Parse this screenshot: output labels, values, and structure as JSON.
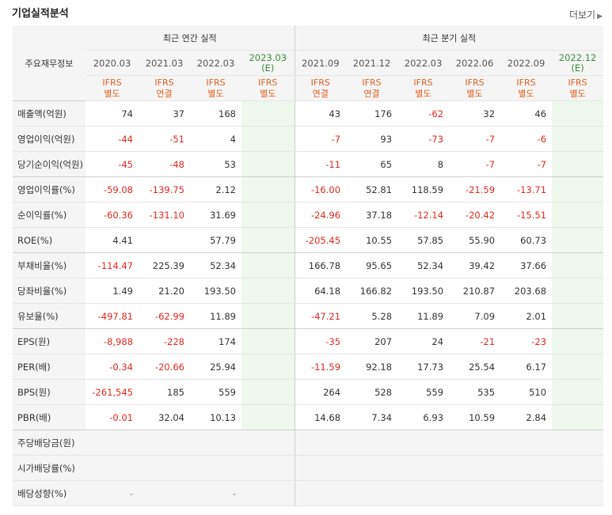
{
  "header": {
    "title": "기업실적분석",
    "more_label": "더보기"
  },
  "table": {
    "label_header": "주요재무정보",
    "groups": {
      "annual": "최근 연간 실적",
      "quarterly": "최근 분기 실적"
    },
    "annual_periods": [
      {
        "period": "2020.03",
        "ifrs": "IFRS",
        "basis": "별도"
      },
      {
        "period": "2021.03",
        "ifrs": "IFRS",
        "basis": "연결"
      },
      {
        "period": "2022.03",
        "ifrs": "IFRS",
        "basis": "별도"
      },
      {
        "period": "2023.03",
        "est": "(E)",
        "ifrs": "IFRS",
        "basis": "별도"
      }
    ],
    "quarterly_periods": [
      {
        "period": "2021.09",
        "ifrs": "IFRS",
        "basis": "연결"
      },
      {
        "period": "2021.12",
        "ifrs": "IFRS",
        "basis": "연결"
      },
      {
        "period": "2022.03",
        "ifrs": "IFRS",
        "basis": "별도"
      },
      {
        "period": "2022.06",
        "ifrs": "IFRS",
        "basis": "별도"
      },
      {
        "period": "2022.09",
        "ifrs": "IFRS",
        "basis": "별도"
      },
      {
        "period": "2022.12",
        "est": "(E)",
        "ifrs": "IFRS",
        "basis": "별도"
      }
    ],
    "rows": [
      {
        "label": "매출액(억원)",
        "annual": [
          "74",
          "37",
          "168",
          ""
        ],
        "quarterly": [
          "43",
          "176",
          "-62",
          "32",
          "46",
          ""
        ]
      },
      {
        "label": "영업이익(억원)",
        "annual": [
          "-44",
          "-51",
          "4",
          ""
        ],
        "quarterly": [
          "-7",
          "93",
          "-73",
          "-7",
          "-6",
          ""
        ]
      },
      {
        "label": "당기순이익(억원)",
        "annual": [
          "-45",
          "-48",
          "53",
          ""
        ],
        "quarterly": [
          "-11",
          "65",
          "8",
          "-7",
          "-7",
          ""
        ]
      },
      {
        "label": "영업이익률(%)",
        "annual": [
          "-59.08",
          "-139.75",
          "2.12",
          ""
        ],
        "quarterly": [
          "-16.00",
          "52.81",
          "118.59",
          "-21.59",
          "-13.71",
          ""
        ]
      },
      {
        "label": "순이익률(%)",
        "annual": [
          "-60.36",
          "-131.10",
          "31.69",
          ""
        ],
        "quarterly": [
          "-24.96",
          "37.18",
          "-12.14",
          "-20.42",
          "-15.51",
          ""
        ]
      },
      {
        "label": "ROE(%)",
        "annual": [
          "4.41",
          "",
          "57.79",
          ""
        ],
        "quarterly": [
          "-205.45",
          "10.55",
          "57.85",
          "55.90",
          "60.73",
          ""
        ]
      },
      {
        "label": "부채비율(%)",
        "annual": [
          "-114.47",
          "225.39",
          "52.34",
          ""
        ],
        "quarterly": [
          "166.78",
          "95.65",
          "52.34",
          "39.42",
          "37.66",
          ""
        ]
      },
      {
        "label": "당좌비율(%)",
        "annual": [
          "1.49",
          "21.20",
          "193.50",
          ""
        ],
        "quarterly": [
          "64.18",
          "166.82",
          "193.50",
          "210.87",
          "203.68",
          ""
        ]
      },
      {
        "label": "유보율(%)",
        "annual": [
          "-497.81",
          "-62.99",
          "11.89",
          ""
        ],
        "quarterly": [
          "-47.21",
          "5.28",
          "11.89",
          "7.09",
          "2.01",
          ""
        ]
      },
      {
        "label": "EPS(원)",
        "annual": [
          "-8,988",
          "-228",
          "174",
          ""
        ],
        "quarterly": [
          "-35",
          "207",
          "24",
          "-21",
          "-23",
          ""
        ]
      },
      {
        "label": "PER(배)",
        "annual": [
          "-0.34",
          "-20.66",
          "25.94",
          ""
        ],
        "quarterly": [
          "-11.59",
          "92.18",
          "17.73",
          "25.54",
          "6.17",
          ""
        ]
      },
      {
        "label": "BPS(원)",
        "annual": [
          "-261,545",
          "185",
          "559",
          ""
        ],
        "quarterly": [
          "264",
          "528",
          "559",
          "535",
          "510",
          ""
        ]
      },
      {
        "label": "PBR(배)",
        "annual": [
          "-0.01",
          "32.04",
          "10.13",
          ""
        ],
        "quarterly": [
          "14.68",
          "7.34",
          "6.93",
          "10.59",
          "2.84",
          ""
        ]
      },
      {
        "label": "주당배당금(원)",
        "annual": [
          "",
          "",
          "",
          ""
        ],
        "quarterly": [
          "",
          "",
          "",
          "",
          "",
          ""
        ]
      },
      {
        "label": "시가배당률(%)",
        "annual": [
          "",
          "",
          "",
          ""
        ],
        "quarterly": [
          "",
          "",
          "",
          "",
          "",
          ""
        ]
      },
      {
        "label": "배당성향(%)",
        "annual": [
          "-",
          "",
          "-",
          ""
        ],
        "quarterly": [
          "",
          "",
          "",
          "",
          "",
          ""
        ]
      }
    ],
    "colors": {
      "negative": "#e3281f",
      "ifrs": "#e06020",
      "estimate": "#3a8b3a",
      "estimate_bg": "#eef8ec",
      "header_bg": "#f5f5f5"
    }
  }
}
